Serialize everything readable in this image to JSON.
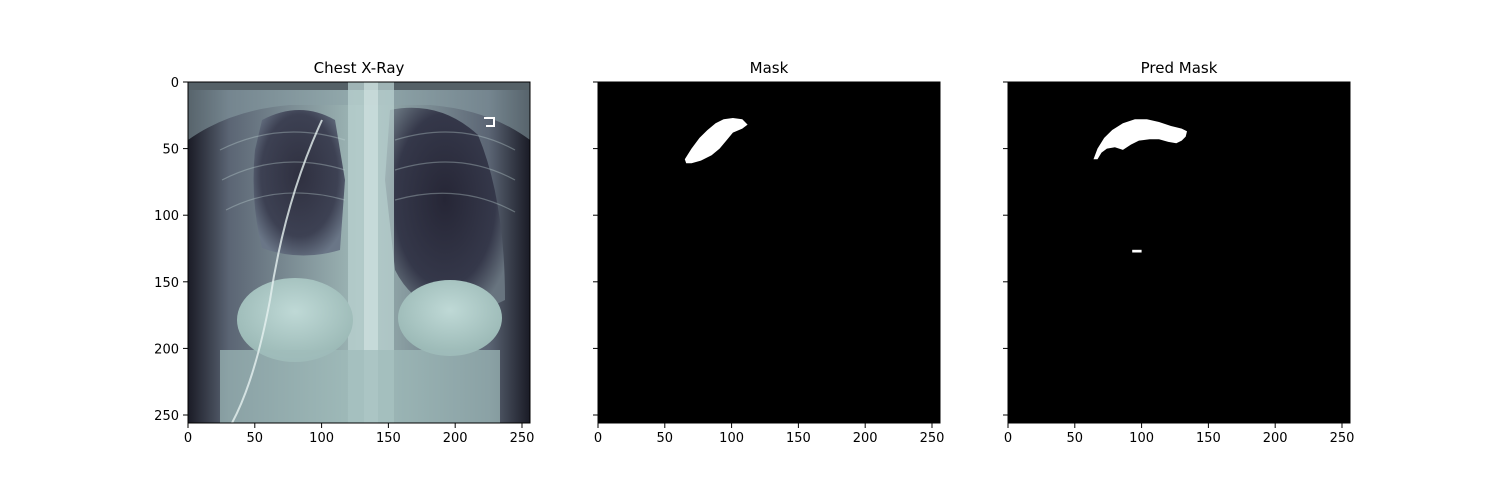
{
  "panels": [
    {
      "title": "Chest X-Ray",
      "kind": "xray",
      "show_y_tick_labels": true
    },
    {
      "title": "Mask",
      "kind": "mask",
      "show_y_tick_labels": false,
      "regions": [
        {
          "name": "upper-lung-region",
          "outline": [
            [
              65,
              58
            ],
            [
              70,
              50
            ],
            [
              76,
              42
            ],
            [
              82,
              36
            ],
            [
              88,
              31
            ],
            [
              94,
              28
            ],
            [
              101,
              27
            ],
            [
              108,
              28
            ],
            [
              112,
              32
            ],
            [
              108,
              35
            ],
            [
              101,
              38
            ],
            [
              96,
              44
            ],
            [
              91,
              50
            ],
            [
              85,
              55
            ],
            [
              77,
              59
            ],
            [
              70,
              61
            ],
            [
              66,
              61
            ]
          ]
        }
      ]
    },
    {
      "title": "Pred Mask",
      "kind": "mask",
      "show_y_tick_labels": false,
      "regions": [
        {
          "name": "predicted-upper-lung-region",
          "outline": [
            [
              64,
              58
            ],
            [
              67,
              50
            ],
            [
              72,
              42
            ],
            [
              78,
              36
            ],
            [
              86,
              31
            ],
            [
              95,
              28
            ],
            [
              104,
              28
            ],
            [
              113,
              30
            ],
            [
              122,
              33
            ],
            [
              130,
              35
            ],
            [
              134,
              37
            ],
            [
              133,
              41
            ],
            [
              130,
              44
            ],
            [
              126,
              46
            ],
            [
              120,
              45
            ],
            [
              113,
              43
            ],
            [
              106,
              43
            ],
            [
              98,
              44
            ],
            [
              92,
              47
            ],
            [
              86,
              51
            ],
            [
              80,
              49
            ],
            [
              74,
              50
            ],
            [
              70,
              53
            ],
            [
              67,
              58
            ]
          ]
        },
        {
          "name": "predicted-small-spot",
          "outline": [
            [
              93,
              126
            ],
            [
              100,
              126
            ],
            [
              100,
              128
            ],
            [
              93,
              128
            ]
          ]
        }
      ]
    }
  ],
  "axes": {
    "x_ticks": [
      "0",
      "50",
      "100",
      "150",
      "200",
      "250"
    ],
    "y_ticks": [
      "0",
      "50",
      "100",
      "150",
      "200",
      "250"
    ],
    "image_extent": [
      0,
      256
    ]
  },
  "colors": {
    "mask_background": "#000000",
    "mask_foreground": "#ffffff",
    "xray_colormap": "bone"
  }
}
